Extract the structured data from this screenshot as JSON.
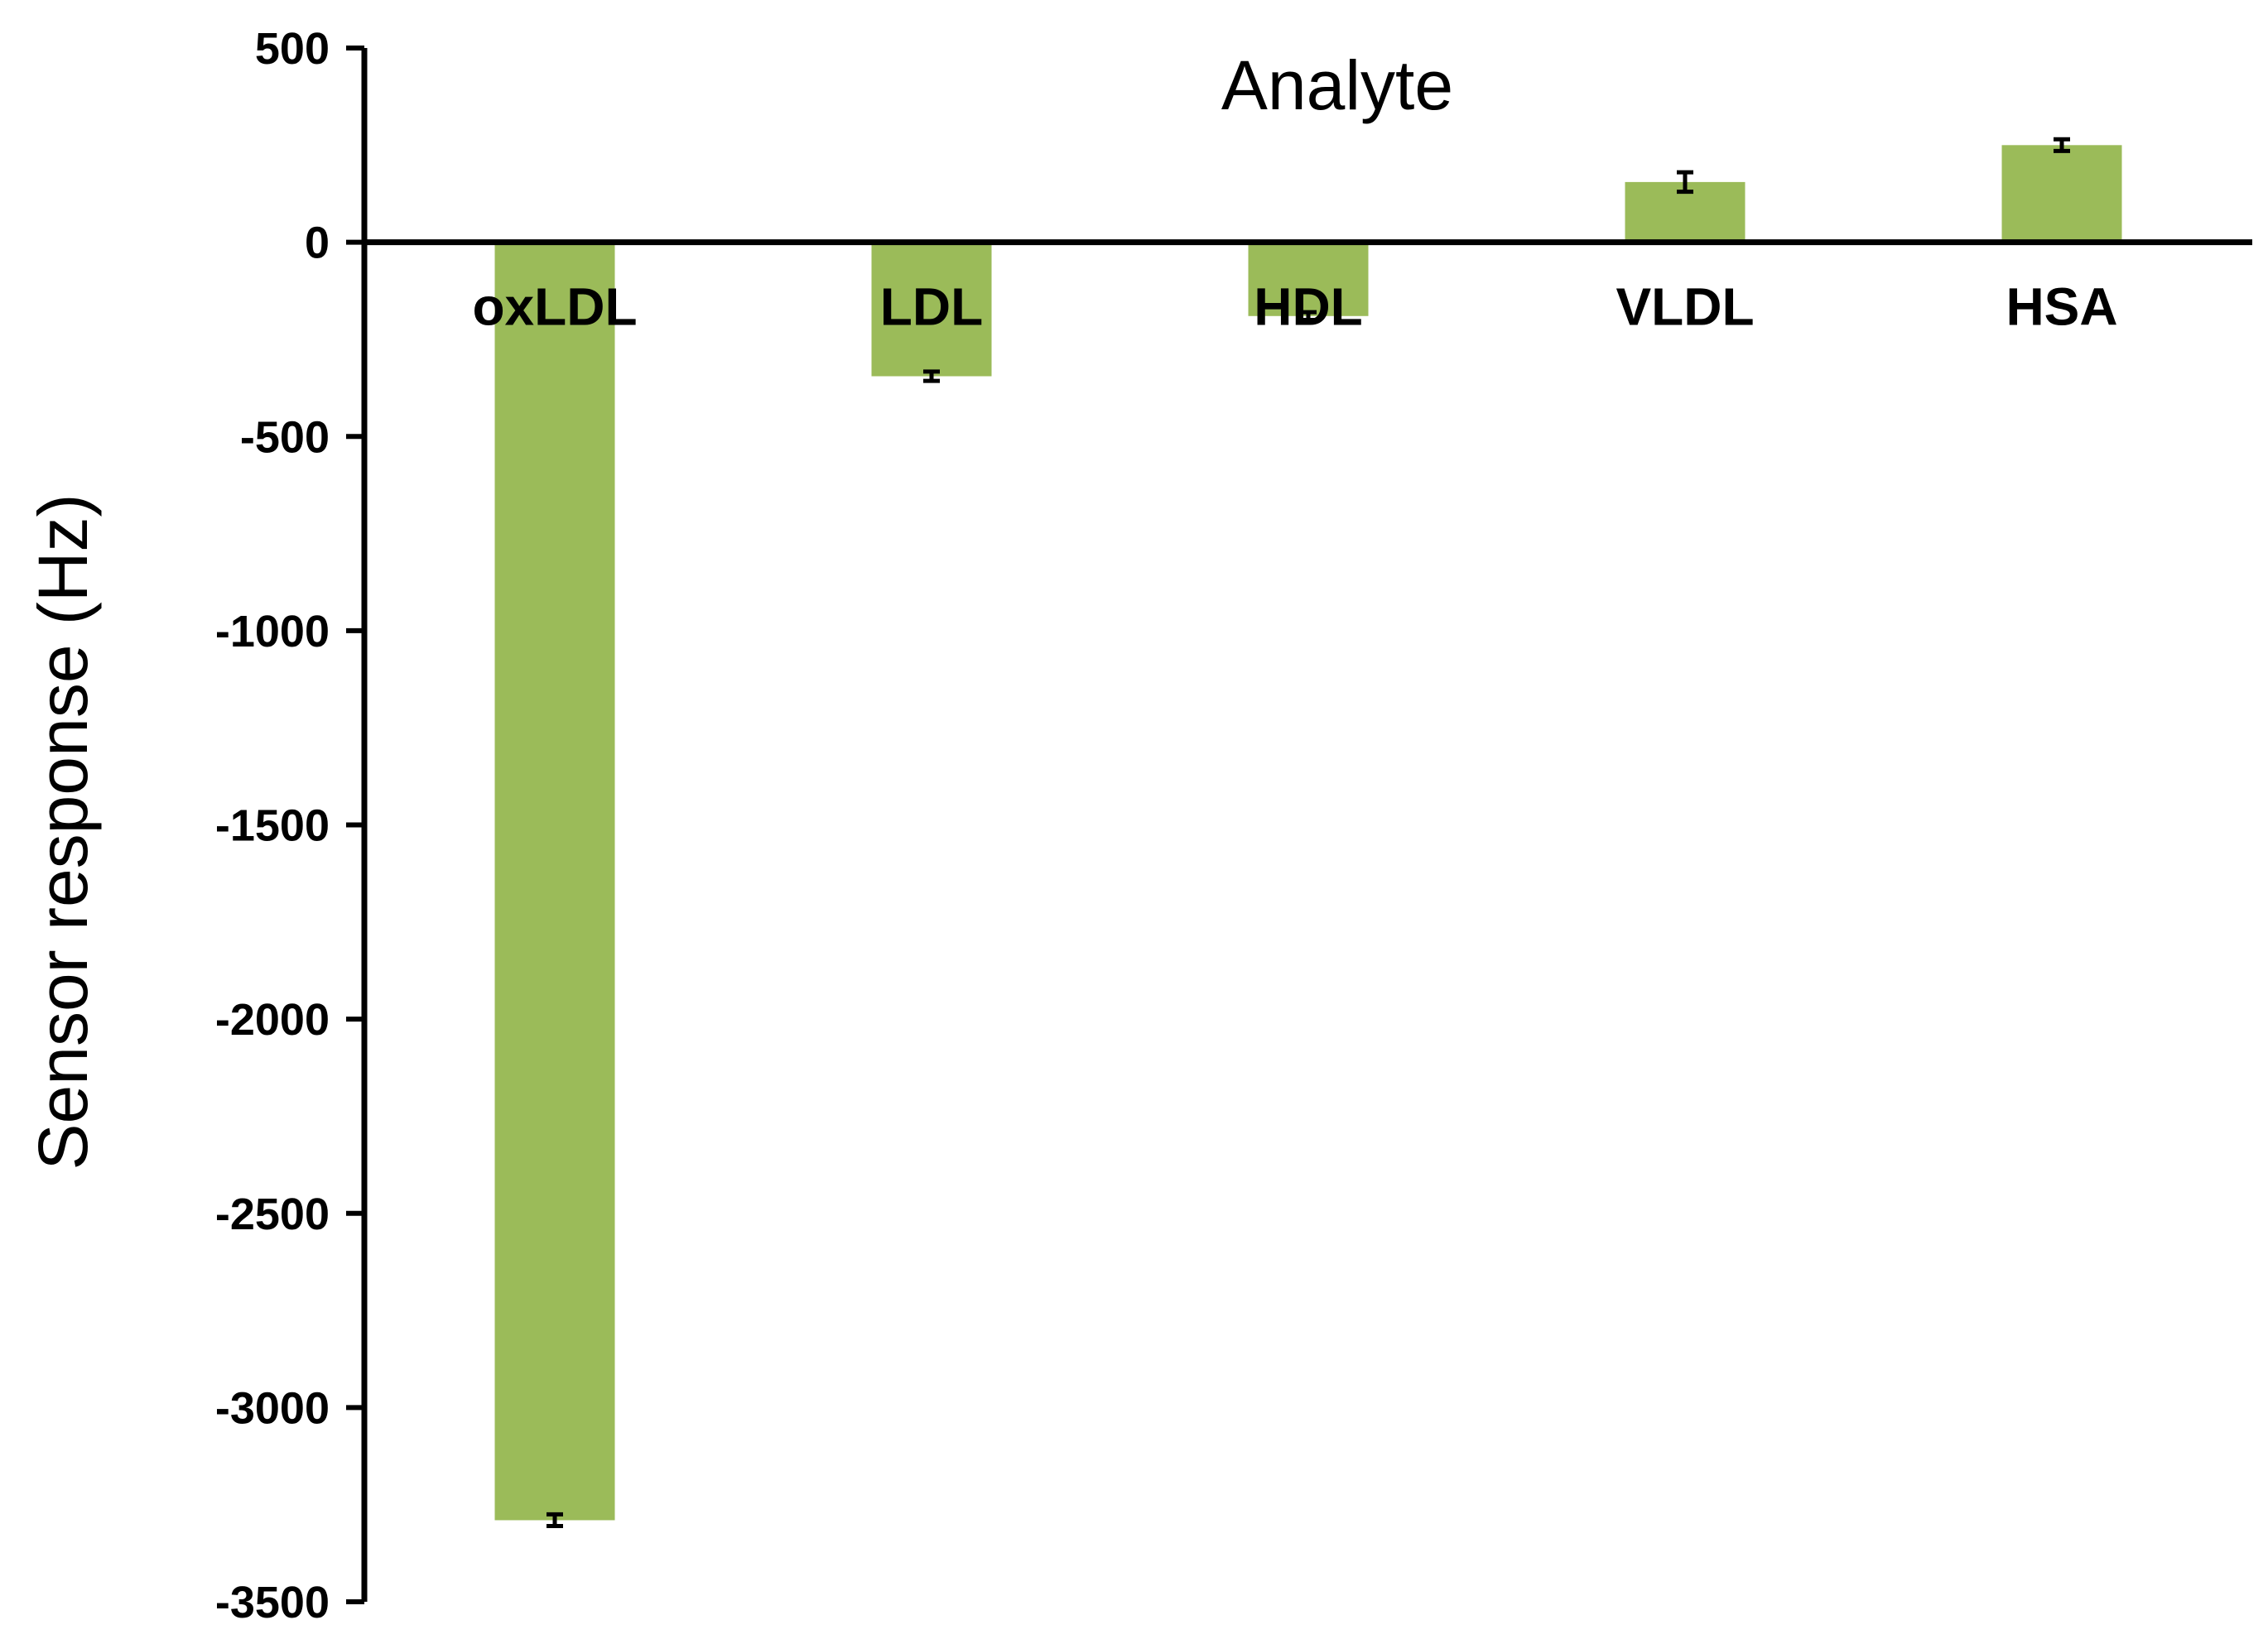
{
  "chart_data": {
    "type": "bar",
    "title": "",
    "xlabel": "Analyte",
    "ylabel": "Sensor response (Hz)",
    "categories": [
      "oxLDL",
      "LDL",
      "HDL",
      "VLDL",
      "HSA"
    ],
    "series": [
      {
        "values": [
          -3290,
          -345,
          -190,
          155,
          250
        ],
        "errors": [
          15,
          12,
          10,
          25,
          15
        ]
      }
    ],
    "ylim": [
      -3500,
      500
    ],
    "yticks": [
      500,
      0,
      -500,
      -1000,
      -1500,
      -2000,
      -2500,
      -3000,
      -3500
    ],
    "grid": false,
    "legend": "none",
    "colors": {
      "bar": "#9bbb59",
      "axis": "#000000",
      "error": "#000000"
    }
  }
}
